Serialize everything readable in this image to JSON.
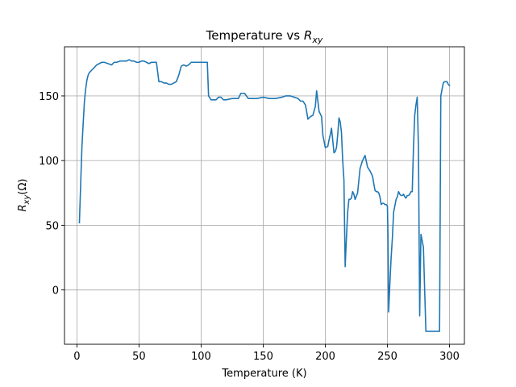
{
  "chart_data": {
    "type": "line",
    "title_main": "Temperature vs ",
    "title_math": {
      "base": "R",
      "sub": "xy"
    },
    "xlabel": "Temperature (K)",
    "ylabel_math": {
      "base": "R",
      "sub": "xy",
      "suffix": "(Ω)"
    },
    "xlim": [
      -10,
      312
    ],
    "ylim": [
      -42,
      188
    ],
    "xticks": [
      0,
      50,
      100,
      150,
      200,
      250,
      300
    ],
    "yticks": [
      0,
      50,
      100,
      150
    ],
    "xtick_labels": [
      "0",
      "50",
      "100",
      "150",
      "200",
      "250",
      "300"
    ],
    "ytick_labels": [
      "0",
      "50",
      "100",
      "150"
    ],
    "grid": true,
    "line_color": "#1f77b4",
    "series": [
      {
        "x": [
          2,
          4,
          5,
          6,
          7,
          8,
          9,
          10,
          12,
          14,
          16,
          18,
          20,
          22,
          25,
          28,
          30,
          32,
          35,
          38,
          40,
          42,
          44,
          46,
          48,
          50,
          52,
          54,
          56,
          58,
          60,
          62,
          64,
          66,
          68,
          70,
          72,
          74,
          76,
          78,
          80,
          82,
          84,
          86,
          88,
          90,
          92,
          95,
          98,
          100,
          103,
          105,
          106,
          108,
          110,
          112,
          114,
          116,
          118,
          120,
          125,
          130,
          132,
          135,
          138,
          140,
          145,
          150,
          155,
          160,
          165,
          168,
          170,
          172,
          175,
          178,
          180,
          182,
          184,
          185,
          186,
          188,
          190,
          192,
          193,
          195,
          197,
          198,
          200,
          202,
          203,
          204,
          205,
          207,
          208,
          209,
          210,
          211,
          212,
          213,
          214,
          215,
          216,
          217,
          218,
          219,
          220,
          221,
          222,
          223,
          224,
          226,
          228,
          230,
          232,
          234,
          236,
          238,
          240,
          241,
          242,
          243,
          244,
          245,
          246,
          247,
          248,
          249,
          250,
          250.5,
          251,
          252,
          253,
          254,
          255,
          256,
          257,
          258,
          259,
          260,
          261,
          262,
          263,
          264,
          265,
          266,
          267,
          268,
          269,
          270,
          271,
          272,
          273,
          274,
          275,
          276,
          277,
          278,
          279,
          280,
          281,
          282,
          284,
          286,
          288,
          290,
          291,
          292,
          293,
          294,
          295,
          296,
          297,
          298,
          299,
          300
        ],
        "y": [
          52,
          110,
          128,
          145,
          155,
          162,
          166,
          168,
          170,
          172,
          174,
          175,
          176,
          176,
          175,
          174,
          176,
          176,
          177,
          177,
          177,
          178,
          177,
          177,
          176,
          176,
          177,
          177,
          176,
          175,
          176,
          176,
          176,
          161,
          161,
          160,
          160,
          159,
          159,
          160,
          161,
          166,
          173,
          174,
          173,
          174,
          176,
          176,
          176,
          176,
          176,
          176,
          150,
          147,
          147,
          147,
          149,
          149,
          147,
          147,
          148,
          148,
          152,
          152,
          148,
          148,
          148,
          149,
          148,
          148,
          149,
          150,
          150,
          150,
          149,
          148,
          146,
          146,
          143,
          138,
          132,
          134,
          135,
          142,
          154,
          138,
          134,
          120,
          110,
          111,
          116,
          120,
          125,
          106,
          107,
          110,
          120,
          133,
          130,
          122,
          100,
          85,
          18,
          40,
          60,
          70,
          70,
          71,
          76,
          74,
          70,
          75,
          94,
          100,
          104,
          95,
          92,
          88,
          77,
          76,
          76,
          75,
          72,
          66,
          67,
          67,
          66,
          66,
          65,
          40,
          -17,
          5,
          25,
          40,
          60,
          65,
          70,
          72,
          76,
          74,
          73,
          73,
          74,
          72,
          71,
          73,
          73,
          74,
          76,
          76,
          110,
          135,
          143,
          149,
          110,
          -20,
          43,
          38,
          33,
          0,
          -32,
          -32,
          -32,
          -32,
          -32,
          -32,
          -32,
          -32,
          150,
          155,
          160,
          161,
          161,
          161,
          159,
          158
        ]
      }
    ]
  }
}
